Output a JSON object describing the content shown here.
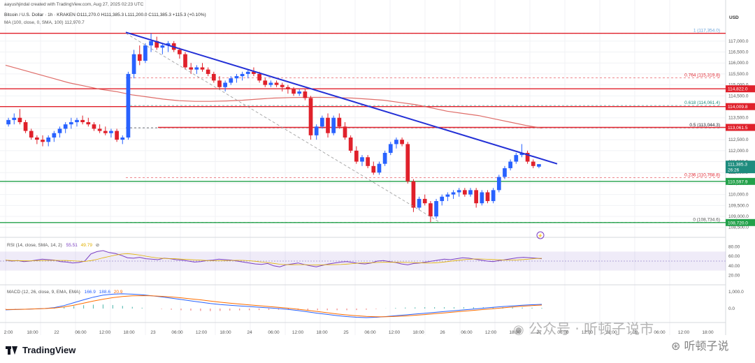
{
  "header": {
    "created_by": "aayushjindal created with TradingView.com, Aug 27, 2025 02:23 UTC",
    "symbol_line": "Bitcoin / U.S. Dollar · 1h · KRAKEN  O111,270.0  H111,385.3  L111,200.0  C111,385.3  +115.3 (+0.10%)",
    "ma_line": "MA (100, close, 0, SMA, 100)  112,970.7"
  },
  "currency": "USD",
  "price_ticks": [
    "117,000.0",
    "116,500.0",
    "116,000.0",
    "115,500.0",
    "115,000.0",
    "114,500.0",
    "114,000.0",
    "113,500.0",
    "113,000.0",
    "112,500.0",
    "112,000.0",
    "111,500.0",
    "111,000.0",
    "110,500.0",
    "110,000.0",
    "109,500.0",
    "109,000.0",
    "108,500.0"
  ],
  "price_labels": [
    {
      "label": "114,822.0",
      "value": 114822,
      "color": "#e0212b"
    },
    {
      "label": "114,009.8",
      "value": 114009.8,
      "color": "#e0212b"
    },
    {
      "label": "113,061.5",
      "value": 113061.5,
      "color": "#e0212b"
    },
    {
      "label": "111,385.3",
      "value": 111385.3,
      "color": "#1e8c7e",
      "extra": "26:26"
    },
    {
      "label": "110,597.9",
      "value": 110597.9,
      "color": "#22a14a"
    },
    {
      "label": "108,720.0",
      "value": 108720,
      "color": "#22a14a"
    }
  ],
  "fib_levels": [
    {
      "label": "1 (117,354.0)",
      "value": 117354,
      "color": "#6aa2d8"
    },
    {
      "label": "0.764 (115,319.8)",
      "value": 115319.8,
      "color": "#e0212b"
    },
    {
      "label": "0.618 (114,061.4)",
      "value": 114061.4,
      "color": "#1e8c7e"
    },
    {
      "label": "0.5 (113,044.3)",
      "value": 113044.3,
      "color": "#131722"
    },
    {
      "label": "0.236 (110,768.8)",
      "value": 110768.8,
      "color": "#e0212b"
    },
    {
      "label": "0 (108,734.6)",
      "value": 108734.6,
      "color": "#555"
    }
  ],
  "rsi": {
    "label": "RSI (14, close, SMA, 14, 2)",
    "value1": "55.51",
    "value2": "49.79",
    "ticks": [
      "80.00",
      "60.00",
      "40.00",
      "20.00"
    ]
  },
  "macd": {
    "label": "MACD (12, 26, close, 9, EMA, EMA)",
    "value1": "166.9",
    "value2": "188.6",
    "value3": "20.9",
    "ticks": [
      "1,000.0",
      "0.0"
    ]
  },
  "time_labels": [
    "2:00",
    "18:00",
    "22",
    "06:00",
    "12:00",
    "18:00",
    "23",
    "06:00",
    "12:00",
    "18:00",
    "24",
    "06:00",
    "12:00",
    "18:00",
    "25",
    "06:00",
    "12:00",
    "18:00",
    "26",
    "06:00",
    "12:00",
    "18:00",
    "27",
    "06:00",
    "12:00",
    "18:00",
    "28",
    "06:00",
    "12:00",
    "18:00",
    "29"
  ],
  "watermark": {
    "wechat": "公众号 · 听顿子说市",
    "site": "听顿子说"
  },
  "brand": "TradingView",
  "chart_data": {
    "type": "candlestick",
    "title": "Bitcoin / U.S. Dollar · 1h · KRAKEN",
    "ylim": [
      108300,
      117600
    ],
    "candles": [
      [
        113200,
        113500,
        113100,
        113400
      ],
      [
        113400,
        113700,
        113200,
        113500
      ],
      [
        113500,
        113900,
        113200,
        113300
      ],
      [
        113300,
        113400,
        112800,
        112900
      ],
      [
        112900,
        113000,
        112500,
        112600
      ],
      [
        112600,
        112700,
        112300,
        112500
      ],
      [
        112500,
        112700,
        112200,
        112400
      ],
      [
        112400,
        112700,
        112200,
        112600
      ],
      [
        112600,
        112900,
        112400,
        112800
      ],
      [
        112800,
        113100,
        112600,
        113000
      ],
      [
        113000,
        113300,
        112800,
        113200
      ],
      [
        113200,
        113500,
        113000,
        113300
      ],
      [
        113300,
        113500,
        113100,
        113400
      ],
      [
        113400,
        113600,
        113200,
        113300
      ],
      [
        113300,
        113500,
        113100,
        113200
      ],
      [
        113200,
        113300,
        112900,
        113000
      ],
      [
        113000,
        113200,
        112800,
        112900
      ],
      [
        112900,
        113100,
        112700,
        112800
      ],
      [
        112800,
        113000,
        112600,
        112900
      ],
      [
        112900,
        113000,
        112400,
        112500
      ],
      [
        112500,
        112700,
        112300,
        112600
      ],
      [
        112600,
        115600,
        112500,
        115500
      ],
      [
        115500,
        116600,
        115300,
        116400
      ],
      [
        116400,
        116800,
        115900,
        116100
      ],
      [
        116100,
        116900,
        116000,
        116800
      ],
      [
        116800,
        117354,
        116500,
        117000
      ],
      [
        117000,
        117200,
        116600,
        116700
      ],
      [
        116700,
        116900,
        116400,
        116800
      ],
      [
        116800,
        117000,
        116500,
        116900
      ],
      [
        116900,
        117000,
        116500,
        116600
      ],
      [
        116600,
        116700,
        116200,
        116400
      ],
      [
        116400,
        116500,
        115700,
        115800
      ],
      [
        115800,
        116000,
        115500,
        115700
      ],
      [
        115700,
        115900,
        115500,
        115800
      ],
      [
        115800,
        116000,
        115600,
        115700
      ],
      [
        115700,
        115800,
        115400,
        115500
      ],
      [
        115500,
        115600,
        115100,
        115200
      ],
      [
        115200,
        115400,
        114800,
        114900
      ],
      [
        114900,
        115200,
        114700,
        115100
      ],
      [
        115100,
        115400,
        115000,
        115300
      ],
      [
        115300,
        115500,
        115100,
        115400
      ],
      [
        115400,
        115600,
        115200,
        115500
      ],
      [
        115500,
        115700,
        115300,
        115600
      ],
      [
        115600,
        115800,
        115400,
        115500
      ],
      [
        115500,
        115600,
        115100,
        115200
      ],
      [
        115200,
        115300,
        114900,
        115000
      ],
      [
        115000,
        115200,
        114900,
        115100
      ],
      [
        115100,
        115200,
        114900,
        115000
      ],
      [
        115000,
        115100,
        114700,
        114900
      ],
      [
        114900,
        115000,
        114600,
        114800
      ],
      [
        114800,
        114900,
        114500,
        114600
      ],
      [
        114600,
        114800,
        114500,
        114700
      ],
      [
        114700,
        114800,
        114300,
        114400
      ],
      [
        114400,
        114500,
        112500,
        112700
      ],
      [
        112700,
        113200,
        112500,
        113100
      ],
      [
        113100,
        113600,
        113000,
        113500
      ],
      [
        113500,
        113700,
        112600,
        112800
      ],
      [
        112800,
        113600,
        112700,
        113500
      ],
      [
        113500,
        113700,
        113000,
        113100
      ],
      [
        113100,
        113300,
        112500,
        112600
      ],
      [
        112600,
        112700,
        111900,
        112000
      ],
      [
        112000,
        112200,
        111400,
        111500
      ],
      [
        111500,
        111800,
        111300,
        111700
      ],
      [
        111700,
        111800,
        111200,
        111300
      ],
      [
        111300,
        111500,
        110900,
        111000
      ],
      [
        111000,
        111500,
        110900,
        111400
      ],
      [
        111400,
        112000,
        111300,
        111900
      ],
      [
        111900,
        112400,
        111800,
        112300
      ],
      [
        112300,
        112600,
        112100,
        112500
      ],
      [
        112500,
        112600,
        112200,
        112300
      ],
      [
        112300,
        112400,
        110500,
        110600
      ],
      [
        110600,
        110700,
        109200,
        109400
      ],
      [
        109400,
        109900,
        109300,
        109800
      ],
      [
        109800,
        110000,
        109500,
        109600
      ],
      [
        109600,
        109700,
        108734.6,
        109000
      ],
      [
        109000,
        109800,
        108900,
        109700
      ],
      [
        109700,
        110000,
        109500,
        109900
      ],
      [
        109900,
        110100,
        109700,
        110000
      ],
      [
        110000,
        110200,
        109800,
        110100
      ],
      [
        110100,
        110300,
        109900,
        110200
      ],
      [
        110200,
        110300,
        109900,
        110000
      ],
      [
        110000,
        110300,
        109900,
        110200
      ],
      [
        110200,
        110300,
        109400,
        109600
      ],
      [
        109600,
        110200,
        109500,
        110100
      ],
      [
        110100,
        110200,
        109600,
        109700
      ],
      [
        109700,
        110300,
        109600,
        110200
      ],
      [
        110200,
        110900,
        110100,
        110800
      ],
      [
        110800,
        111300,
        110700,
        111200
      ],
      [
        111200,
        111600,
        111100,
        111500
      ],
      [
        111500,
        111900,
        111400,
        111800
      ],
      [
        111800,
        112300,
        111700,
        111900
      ],
      [
        111900,
        112000,
        111400,
        111500
      ],
      [
        111500,
        111600,
        111200,
        111300
      ],
      [
        111270,
        111385.3,
        111200,
        111385.3
      ]
    ],
    "moving_average": {
      "name": "MA (100, close, 0, SMA, 100)",
      "values": [
        115900,
        115700,
        115500,
        115300,
        115100,
        114950,
        114800,
        114700,
        114550,
        114450,
        114350,
        114280,
        114250,
        114250,
        114270,
        114300,
        114350,
        114400,
        114420,
        114430,
        114430,
        114420,
        114400,
        114350,
        114300,
        114200,
        114100,
        113950,
        113800,
        113700,
        113600,
        113450,
        113300,
        113150,
        113030
      ]
    },
    "downtrend_line": {
      "from": [
        117400,
        0
      ],
      "to": [
        111400,
        1
      ]
    },
    "rsi_series": [
      52,
      50,
      51,
      49,
      50,
      52,
      54,
      53,
      52,
      49,
      48,
      46,
      47,
      50,
      65,
      70,
      72,
      68,
      66,
      62,
      57,
      56,
      58,
      55,
      54,
      53,
      56,
      55,
      53,
      52,
      50,
      48,
      49,
      51,
      52,
      54,
      53,
      52,
      50,
      48,
      46,
      44,
      43,
      45,
      40,
      38,
      42,
      44,
      46,
      43,
      40,
      38,
      41,
      44,
      46,
      48,
      49,
      47,
      45,
      44,
      46,
      50,
      51,
      49,
      47,
      44,
      42,
      45,
      46,
      48,
      50,
      52,
      54,
      53,
      55,
      57,
      56,
      54,
      52,
      50,
      49,
      51,
      53,
      55,
      57,
      58,
      57,
      56,
      55
    ],
    "macd_series": [
      -80,
      -60,
      -40,
      -20,
      0,
      60,
      180,
      350,
      520,
      680,
      800,
      860,
      880,
      860,
      820,
      760,
      700,
      620,
      540,
      460,
      380,
      300,
      240,
      200,
      160,
      120,
      80,
      40,
      0,
      -50,
      -120,
      -200,
      -280,
      -350,
      -420,
      -480,
      -520,
      -540,
      -520,
      -480,
      -430,
      -380,
      -330,
      -280,
      -230,
      -180,
      -130,
      -80,
      -30,
      20,
      70,
      120,
      160,
      200,
      230,
      250
    ],
    "macd_signal_series": [
      -60,
      -50,
      -40,
      -20,
      0,
      30,
      100,
      200,
      320,
      450,
      560,
      650,
      720,
      760,
      770,
      760,
      730,
      690,
      640,
      580,
      520,
      450,
      380,
      320,
      270,
      220,
      170,
      120,
      70,
      20,
      -40,
      -110,
      -180,
      -250,
      -320,
      -380,
      -430,
      -470,
      -490,
      -490,
      -470,
      -440,
      -400,
      -360,
      -310,
      -260,
      -210,
      -160,
      -110,
      -60,
      -10,
      40,
      90,
      140,
      180,
      210
    ],
    "macd_histogram": [
      -20,
      -10,
      0,
      0,
      0,
      30,
      80,
      150,
      200,
      230,
      240,
      210,
      160,
      100,
      50,
      0,
      -30,
      -70,
      -100,
      -120,
      -140,
      -150,
      -140,
      -120,
      -110,
      -100,
      -90,
      -80,
      -70,
      -70,
      -80,
      -90,
      -100,
      -100,
      -100,
      -100,
      -90,
      -70,
      -30,
      10,
      40,
      60,
      70,
      80,
      80,
      80,
      80,
      80,
      80,
      80,
      80,
      80,
      70,
      60,
      50,
      40
    ]
  }
}
